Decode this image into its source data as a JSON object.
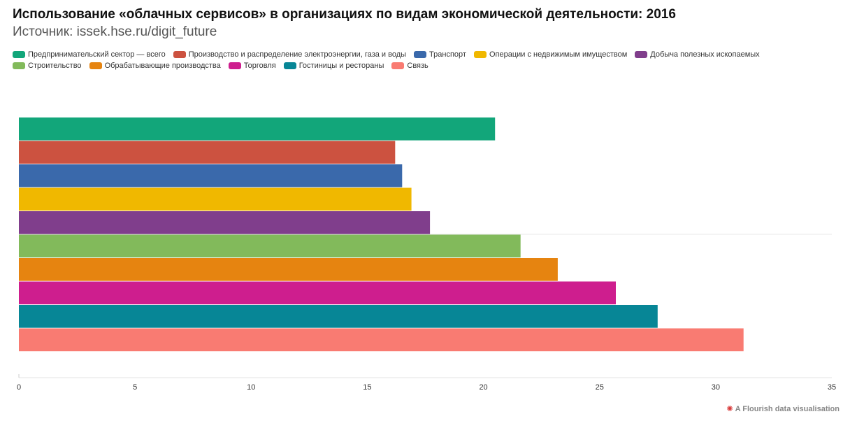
{
  "title": "Использование «облачных сервисов» в организациях по видам экономической деятельности: 2016",
  "subtitle": "Источник: issek.hse.ru/digit_future",
  "footer": {
    "text": "A Flourish data visualisation",
    "icon": "flourish-logo-icon"
  },
  "chart_data": {
    "type": "bar",
    "orientation": "horizontal",
    "title": "Использование «облачных сервисов» в организациях по видам экономической деятельности: 2016",
    "xlabel": "",
    "ylabel": "",
    "xlim": [
      0,
      35
    ],
    "xticks": [
      "0",
      "5",
      "10",
      "15",
      "20",
      "25",
      "30",
      "35"
    ],
    "legend_position": "top-left",
    "series": [
      {
        "name": "Предпринимательский сектор — всего",
        "value": 20.5,
        "color": "#12a67a"
      },
      {
        "name": "Производство и распределение электроэнергии, газа и воды",
        "value": 16.2,
        "color": "#cc5240"
      },
      {
        "name": "Транспорт",
        "value": 16.5,
        "color": "#3a69ab"
      },
      {
        "name": "Операции с недвижимым имуществом",
        "value": 16.9,
        "color": "#f0b800"
      },
      {
        "name": "Добыча полезных ископаемых",
        "value": 17.7,
        "color": "#803e8c"
      },
      {
        "name": "Строительство",
        "value": 21.6,
        "color": "#82ba5b"
      },
      {
        "name": "Обрабатывающие производства",
        "value": 23.2,
        "color": "#e68410"
      },
      {
        "name": "Торговля",
        "value": 25.7,
        "color": "#ce1e8e"
      },
      {
        "name": "Гостиницы и рестораны",
        "value": 27.5,
        "color": "#078696"
      },
      {
        "name": "Связь",
        "value": 31.2,
        "color": "#f97b72"
      }
    ]
  }
}
